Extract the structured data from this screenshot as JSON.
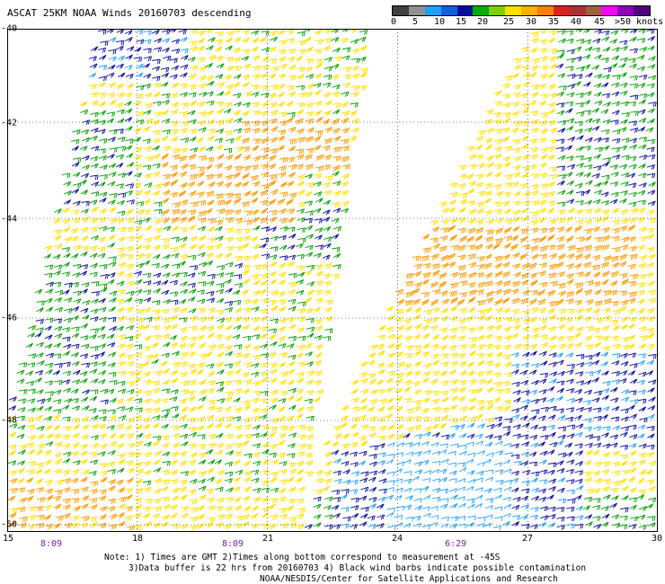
{
  "title": "ASCAT 25KM NOAA Winds 20160703 descending",
  "colorbar": {
    "colors": [
      "#404040",
      "#909090",
      "#1ea0ff",
      "#1060e0",
      "#0a0aa0",
      "#00b000",
      "#80d000",
      "#ffe000",
      "#ffb000",
      "#ff8000",
      "#e02020",
      "#b03030",
      "#a06040",
      "#ff00ff",
      "#9000c0",
      "#500080"
    ],
    "labels": [
      "0",
      "5",
      "10",
      "15",
      "20",
      "25",
      "30",
      "35",
      "40",
      "45",
      ">50 knots"
    ]
  },
  "map": {
    "lat_labels": [
      "-40",
      "-42",
      "-44",
      "-46",
      "-48",
      "-50"
    ],
    "lon_labels": [
      "15",
      "18",
      "21",
      "24",
      "27",
      "30"
    ],
    "time_labels": [
      "8:09",
      "8:09",
      "6:29"
    ],
    "lon_range": [
      15,
      30
    ],
    "lat_range": [
      -50,
      -40
    ]
  },
  "notes": {
    "line1": "Note: 1) Times are GMT 2)Times along bottom correspond to measurement at -45S",
    "line2": "3)Data buffer is 22 hrs from 20160703 4) Black wind barbs indicate possible contamination",
    "line3": "NOAA/NESDIS/Center for Satellite Applications and Research"
  }
}
